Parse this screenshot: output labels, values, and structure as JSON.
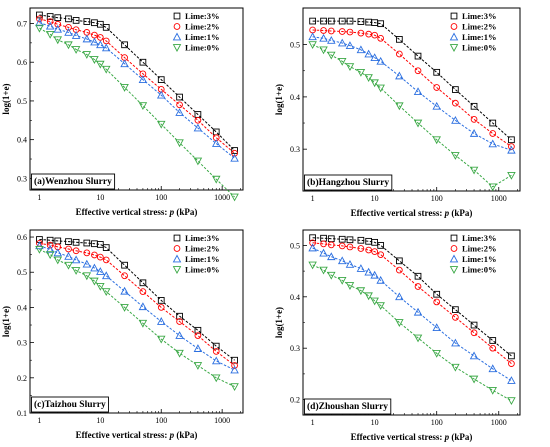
{
  "colors": {
    "Lime:3%": "#000000",
    "Lime:2%": "#ff0000",
    "Lime:1%": "#2b6fe0",
    "Lime:0%": "#3aa845"
  },
  "chart_data": [
    {
      "type": "scatter",
      "caption": "(a)Wenzhou Slurry",
      "xlabel": "Effective vertical stress: p (kPa)",
      "ylabel": "log(1+e)",
      "xscale": "log",
      "xlim": [
        0.7,
        2200
      ],
      "ylim": [
        0.27,
        0.74
      ],
      "xticks": [
        1,
        10,
        100,
        1000
      ],
      "xtick_labels": [
        "1",
        "10",
        "100",
        "1000"
      ],
      "yticks": [
        0.3,
        0.4,
        0.5,
        0.6,
        0.7
      ],
      "ytick_labels": [
        "0.3",
        "0.4",
        "0.5",
        "0.6",
        "0.7"
      ],
      "legend_position": "top-right",
      "grid": false,
      "series": [
        {
          "name": "Lime:3%",
          "marker": "square",
          "x": [
            1,
            1.5,
            2,
            3,
            4,
            6,
            8,
            10,
            12.5,
            25,
            50,
            100,
            200,
            400,
            800,
            1600
          ],
          "y": [
            0.722,
            0.718,
            0.715,
            0.712,
            0.708,
            0.705,
            0.702,
            0.698,
            0.69,
            0.645,
            0.6,
            0.555,
            0.51,
            0.465,
            0.42,
            0.372
          ]
        },
        {
          "name": "Lime:2%",
          "marker": "circle",
          "x": [
            1,
            1.5,
            2,
            3,
            4,
            6,
            8,
            10,
            12.5,
            25,
            50,
            100,
            200,
            400,
            800,
            1600
          ],
          "y": [
            0.712,
            0.705,
            0.698,
            0.69,
            0.684,
            0.677,
            0.67,
            0.664,
            0.655,
            0.612,
            0.57,
            0.53,
            0.49,
            0.45,
            0.405,
            0.365
          ]
        },
        {
          "name": "Lime:1%",
          "marker": "triangle-up",
          "x": [
            1,
            1.5,
            2,
            3,
            4,
            6,
            8,
            10,
            12.5,
            25,
            50,
            100,
            200,
            400,
            800,
            1600
          ],
          "y": [
            0.702,
            0.693,
            0.685,
            0.677,
            0.669,
            0.66,
            0.652,
            0.645,
            0.637,
            0.596,
            0.555,
            0.515,
            0.47,
            0.43,
            0.39,
            0.352
          ]
        },
        {
          "name": "Lime:0%",
          "marker": "triangle-down",
          "x": [
            1,
            1.5,
            2,
            3,
            4,
            6,
            8,
            10,
            12.5,
            25,
            50,
            100,
            200,
            400,
            800,
            1600
          ],
          "y": [
            0.688,
            0.672,
            0.658,
            0.645,
            0.633,
            0.62,
            0.607,
            0.595,
            0.582,
            0.535,
            0.488,
            0.44,
            0.392,
            0.345,
            0.298,
            0.252
          ]
        }
      ]
    },
    {
      "type": "scatter",
      "caption": "(b)Hangzhou Slurry",
      "xlabel": "Effective vertical stress: p (kPa)",
      "ylabel": "log(1+e)",
      "xscale": "log",
      "xlim": [
        0.7,
        2200
      ],
      "ylim": [
        0.22,
        0.57
      ],
      "xticks": [
        1,
        10,
        100,
        1000
      ],
      "xtick_labels": [
        "1",
        "10",
        "100",
        "1000"
      ],
      "yticks": [
        0.3,
        0.4,
        0.5
      ],
      "ytick_labels": [
        "0.3",
        "0.4",
        "0.5"
      ],
      "legend_position": "top-right",
      "grid": false,
      "series": [
        {
          "name": "Lime:3%",
          "marker": "square",
          "x": [
            1,
            1.5,
            2,
            3,
            4,
            6,
            8,
            10,
            12.5,
            25,
            50,
            100,
            200,
            400,
            800,
            1600
          ],
          "y": [
            0.545,
            0.545,
            0.545,
            0.545,
            0.545,
            0.544,
            0.543,
            0.542,
            0.54,
            0.51,
            0.478,
            0.447,
            0.414,
            0.382,
            0.35,
            0.318
          ]
        },
        {
          "name": "Lime:2%",
          "marker": "circle",
          "x": [
            1,
            1.5,
            2,
            3,
            4,
            6,
            8,
            10,
            12.5,
            25,
            50,
            100,
            200,
            400,
            800,
            1600
          ],
          "y": [
            0.528,
            0.527,
            0.526,
            0.525,
            0.524,
            0.522,
            0.52,
            0.518,
            0.512,
            0.482,
            0.45,
            0.418,
            0.388,
            0.357,
            0.33,
            0.305
          ]
        },
        {
          "name": "Lime:1%",
          "marker": "triangle-up",
          "x": [
            1,
            1.5,
            2,
            3,
            4,
            6,
            8,
            10,
            12.5,
            25,
            50,
            100,
            200,
            400,
            800,
            1600
          ],
          "y": [
            0.515,
            0.512,
            0.508,
            0.503,
            0.498,
            0.49,
            0.482,
            0.475,
            0.468,
            0.44,
            0.41,
            0.382,
            0.355,
            0.33,
            0.31,
            0.298
          ]
        },
        {
          "name": "Lime:0%",
          "marker": "triangle-down",
          "x": [
            1,
            1.5,
            2,
            3,
            4,
            6,
            8,
            10,
            12.5,
            25,
            50,
            100,
            200,
            400,
            800,
            1600
          ],
          "y": [
            0.5,
            0.49,
            0.48,
            0.468,
            0.458,
            0.447,
            0.437,
            0.427,
            0.417,
            0.383,
            0.35,
            0.318,
            0.288,
            0.26,
            0.228,
            0.25
          ]
        }
      ]
    },
    {
      "type": "scatter",
      "caption": "(c)Taizhou Slurry",
      "xlabel": "Effective vertical stress: p (kPa)",
      "ylabel": "log(1+e)",
      "xscale": "log",
      "xlim": [
        0.7,
        2200
      ],
      "ylim": [
        0.1,
        0.62
      ],
      "xticks": [
        1,
        10,
        100,
        1000
      ],
      "xtick_labels": [
        "1",
        "10",
        "100",
        "1000"
      ],
      "yticks": [
        0.1,
        0.2,
        0.3,
        0.4,
        0.5,
        0.6
      ],
      "ytick_labels": [
        "0.1",
        "0.2",
        "0.3",
        "0.4",
        "0.5",
        "0.6"
      ],
      "legend_position": "top-right",
      "grid": false,
      "series": [
        {
          "name": "Lime:3%",
          "marker": "square",
          "x": [
            1,
            1.5,
            2,
            3,
            4,
            6,
            8,
            10,
            12.5,
            25,
            50,
            100,
            200,
            400,
            800,
            1600
          ],
          "y": [
            0.593,
            0.591,
            0.589,
            0.587,
            0.585,
            0.583,
            0.581,
            0.579,
            0.57,
            0.52,
            0.47,
            0.42,
            0.375,
            0.335,
            0.29,
            0.25
          ]
        },
        {
          "name": "Lime:2%",
          "marker": "circle",
          "x": [
            1,
            1.5,
            2,
            3,
            4,
            6,
            8,
            10,
            12.5,
            25,
            50,
            100,
            200,
            400,
            800,
            1600
          ],
          "y": [
            0.582,
            0.577,
            0.572,
            0.566,
            0.561,
            0.555,
            0.549,
            0.543,
            0.535,
            0.49,
            0.445,
            0.4,
            0.36,
            0.32,
            0.275,
            0.235
          ]
        },
        {
          "name": "Lime:1%",
          "marker": "triangle-up",
          "x": [
            1,
            1.5,
            2,
            3,
            4,
            6,
            8,
            10,
            12.5,
            25,
            50,
            100,
            200,
            400,
            800,
            1600
          ],
          "y": [
            0.575,
            0.565,
            0.555,
            0.545,
            0.535,
            0.523,
            0.512,
            0.502,
            0.49,
            0.446,
            0.402,
            0.36,
            0.32,
            0.283,
            0.248,
            0.222
          ]
        },
        {
          "name": "Lime:0%",
          "marker": "triangle-down",
          "x": [
            1,
            1.5,
            2,
            3,
            4,
            6,
            8,
            10,
            12.5,
            25,
            50,
            100,
            200,
            400,
            800,
            1600
          ],
          "y": [
            0.565,
            0.55,
            0.535,
            0.52,
            0.505,
            0.49,
            0.475,
            0.46,
            0.445,
            0.4,
            0.355,
            0.31,
            0.27,
            0.235,
            0.2,
            0.175
          ]
        }
      ]
    },
    {
      "type": "scatter",
      "caption": "(d)Zhoushan Slurry",
      "xlabel": "Effective vertical stress: p (kPa)",
      "ylabel": "log(1+e)",
      "xscale": "log",
      "xlim": [
        0.7,
        2200
      ],
      "ylim": [
        0.17,
        0.53
      ],
      "xticks": [
        1,
        10,
        100,
        1000
      ],
      "xtick_labels": [
        "1",
        "10",
        "100",
        "1000"
      ],
      "yticks": [
        0.2,
        0.3,
        0.4,
        0.5
      ],
      "ytick_labels": [
        "0.2",
        "0.3",
        "0.4",
        "0.5"
      ],
      "legend_position": "top-right",
      "grid": false,
      "series": [
        {
          "name": "Lime:3%",
          "marker": "square",
          "x": [
            1,
            1.5,
            2,
            3,
            4,
            6,
            8,
            10,
            12.5,
            25,
            50,
            100,
            200,
            400,
            800,
            1600
          ],
          "y": [
            0.515,
            0.514,
            0.513,
            0.512,
            0.511,
            0.51,
            0.508,
            0.506,
            0.5,
            0.47,
            0.44,
            0.405,
            0.375,
            0.345,
            0.315,
            0.285
          ]
        },
        {
          "name": "Lime:2%",
          "marker": "circle",
          "x": [
            1,
            1.5,
            2,
            3,
            4,
            6,
            8,
            10,
            12.5,
            25,
            50,
            100,
            200,
            400,
            800,
            1600
          ],
          "y": [
            0.505,
            0.503,
            0.501,
            0.499,
            0.497,
            0.494,
            0.491,
            0.488,
            0.482,
            0.452,
            0.42,
            0.39,
            0.36,
            0.33,
            0.3,
            0.27
          ]
        },
        {
          "name": "Lime:1%",
          "marker": "triangle-up",
          "x": [
            1,
            1.5,
            2,
            3,
            4,
            6,
            8,
            10,
            12.5,
            25,
            50,
            100,
            200,
            400,
            800,
            1600
          ],
          "y": [
            0.495,
            0.485,
            0.478,
            0.47,
            0.463,
            0.455,
            0.448,
            0.442,
            0.432,
            0.4,
            0.37,
            0.34,
            0.31,
            0.285,
            0.26,
            0.237
          ]
        },
        {
          "name": "Lime:0%",
          "marker": "triangle-down",
          "x": [
            1,
            1.5,
            2,
            3,
            4,
            6,
            8,
            10,
            12.5,
            25,
            50,
            100,
            200,
            400,
            800,
            1600
          ],
          "y": [
            0.462,
            0.452,
            0.442,
            0.432,
            0.422,
            0.412,
            0.402,
            0.392,
            0.383,
            0.35,
            0.32,
            0.29,
            0.263,
            0.24,
            0.218,
            0.198
          ]
        }
      ]
    }
  ]
}
